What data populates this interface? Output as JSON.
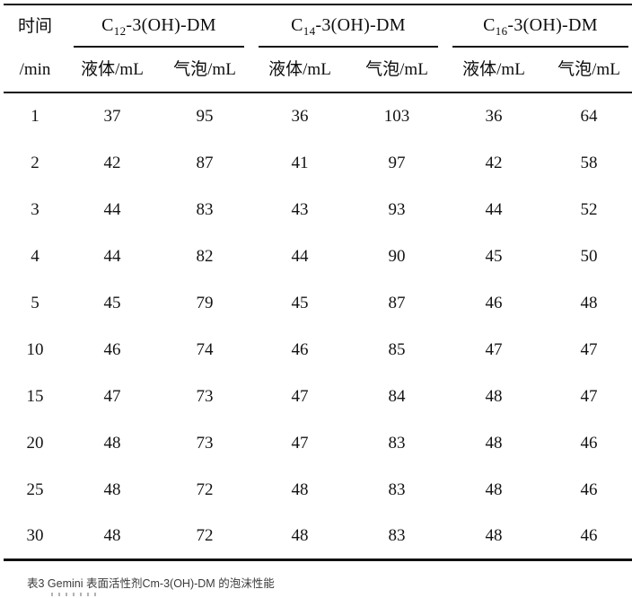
{
  "table": {
    "corner_header": {
      "line1": "时间",
      "line2": "/min"
    },
    "groups": [
      {
        "prefix": "C",
        "subscript": "12",
        "suffix": "-3(OH)-DM"
      },
      {
        "prefix": "C",
        "subscript": "14",
        "suffix": "-3(OH)-DM"
      },
      {
        "prefix": "C",
        "subscript": "16",
        "suffix": "-3(OH)-DM"
      }
    ],
    "sub_headers": [
      "液体/mL",
      "气泡/mL",
      "液体/mL",
      "气泡/mL",
      "液体/mL",
      "气泡/mL"
    ],
    "rows": [
      {
        "time": "1",
        "values": [
          "37",
          "95",
          "36",
          "103",
          "36",
          "64"
        ]
      },
      {
        "time": "2",
        "values": [
          "42",
          "87",
          "41",
          "97",
          "42",
          "58"
        ]
      },
      {
        "time": "3",
        "values": [
          "44",
          "83",
          "43",
          "93",
          "44",
          "52"
        ]
      },
      {
        "time": "4",
        "values": [
          "44",
          "82",
          "44",
          "90",
          "45",
          "50"
        ]
      },
      {
        "time": "5",
        "values": [
          "45",
          "79",
          "45",
          "87",
          "46",
          "48"
        ]
      },
      {
        "time": "10",
        "values": [
          "46",
          "74",
          "46",
          "85",
          "47",
          "47"
        ]
      },
      {
        "time": "15",
        "values": [
          "47",
          "73",
          "47",
          "84",
          "48",
          "47"
        ]
      },
      {
        "time": "20",
        "values": [
          "48",
          "73",
          "47",
          "83",
          "48",
          "46"
        ]
      },
      {
        "time": "25",
        "values": [
          "48",
          "72",
          "48",
          "83",
          "48",
          "46"
        ]
      },
      {
        "time": "30",
        "values": [
          "48",
          "72",
          "48",
          "83",
          "48",
          "46"
        ]
      }
    ]
  },
  "caption": "表3 Gemini 表面活性剂Cm-3(OH)-DM 的泡沫性能"
}
